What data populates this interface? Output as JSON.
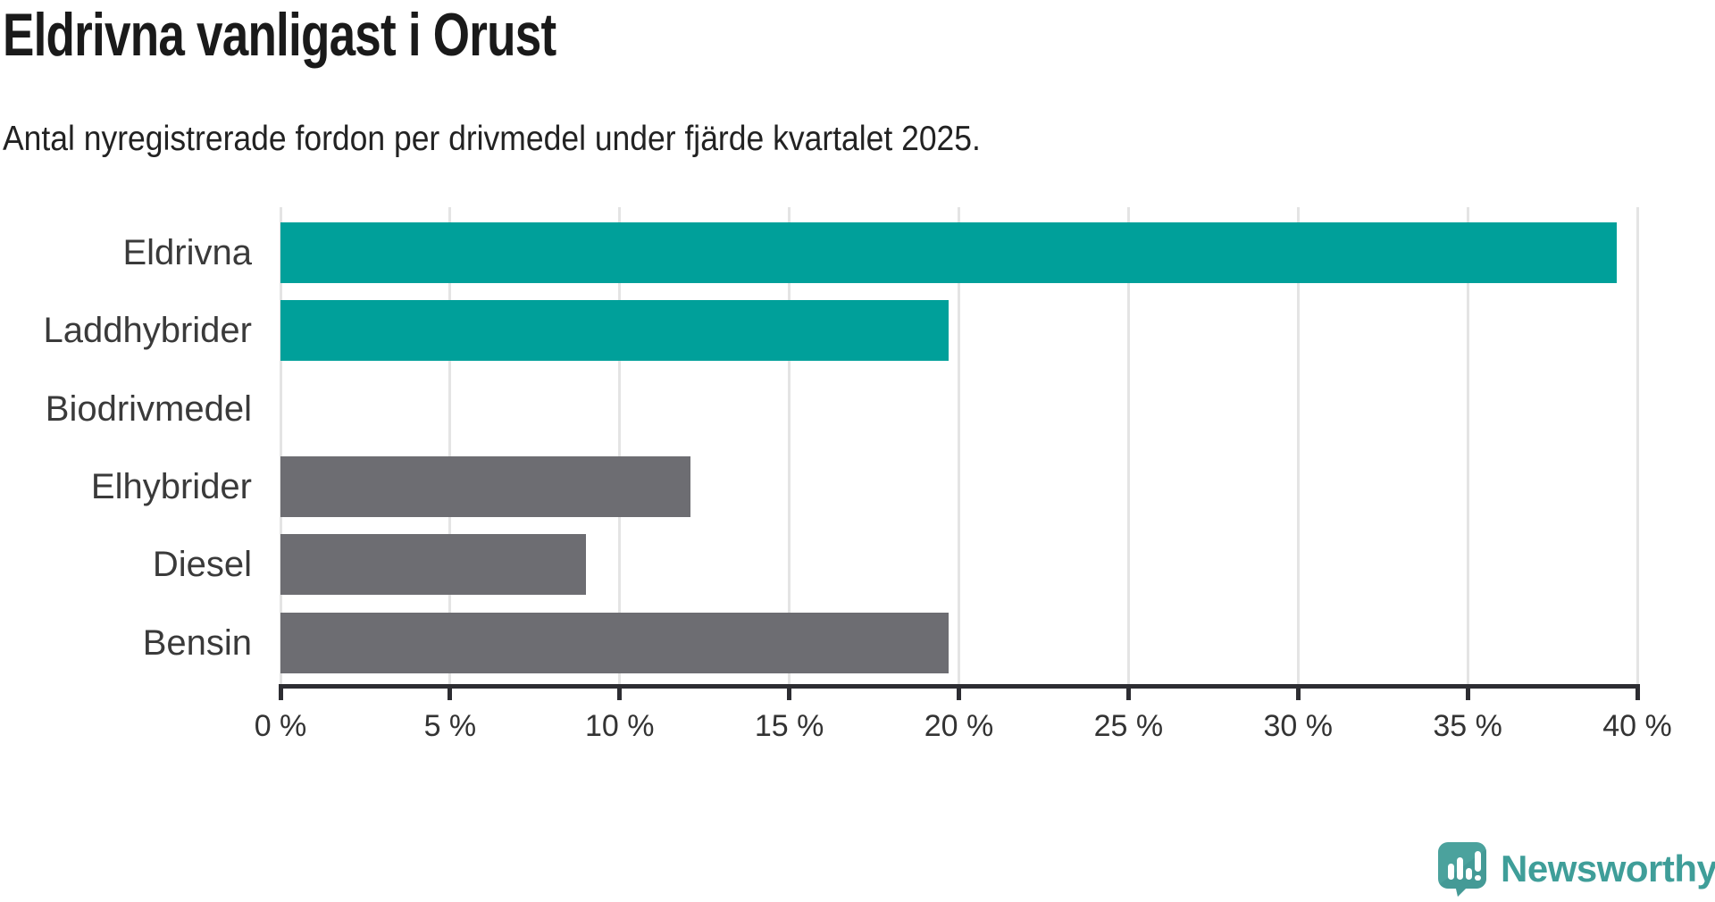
{
  "header": {
    "title": "Eldrivna vanligast i Orust",
    "subtitle": "Antal nyregistrerade fordon per drivmedel under fjärde kvartalet 2025."
  },
  "chart_data": {
    "type": "bar",
    "orientation": "horizontal",
    "title": "Eldrivna vanligast i Orust",
    "subtitle": "Antal nyregistrerade fordon per drivmedel under fjärde kvartalet 2025.",
    "categories": [
      "Eldrivna",
      "Laddhybrider",
      "Biodrivmedel",
      "Elhybrider",
      "Diesel",
      "Bensin"
    ],
    "values": [
      39.4,
      19.7,
      0,
      12.1,
      9.0,
      19.7
    ],
    "bar_colors": [
      "#00a09a",
      "#00a09a",
      "#6d6d72",
      "#6d6d72",
      "#6d6d72",
      "#6d6d72"
    ],
    "highlight_color": "#00a09a",
    "default_color": "#6d6d72",
    "xlim": [
      0,
      40
    ],
    "xticks": [
      0,
      5,
      10,
      15,
      20,
      25,
      30,
      35,
      40
    ],
    "xtick_suffix": " %",
    "xlabel": "",
    "ylabel": "",
    "grid": true,
    "legend": false
  },
  "style": {
    "grid_color": "#e4e4e4",
    "axis_color": "#2d2d32",
    "label_color": "#3a3a3a",
    "tick_label_color": "#333333"
  },
  "branding": {
    "wordmark": "Newsworthy",
    "logo_icon": "newsworthy-speech-bubble-chart-icon",
    "icon_color": "#4ba29d",
    "icon_shade_color": "#3f948f",
    "text_color": "#3f9e99"
  }
}
